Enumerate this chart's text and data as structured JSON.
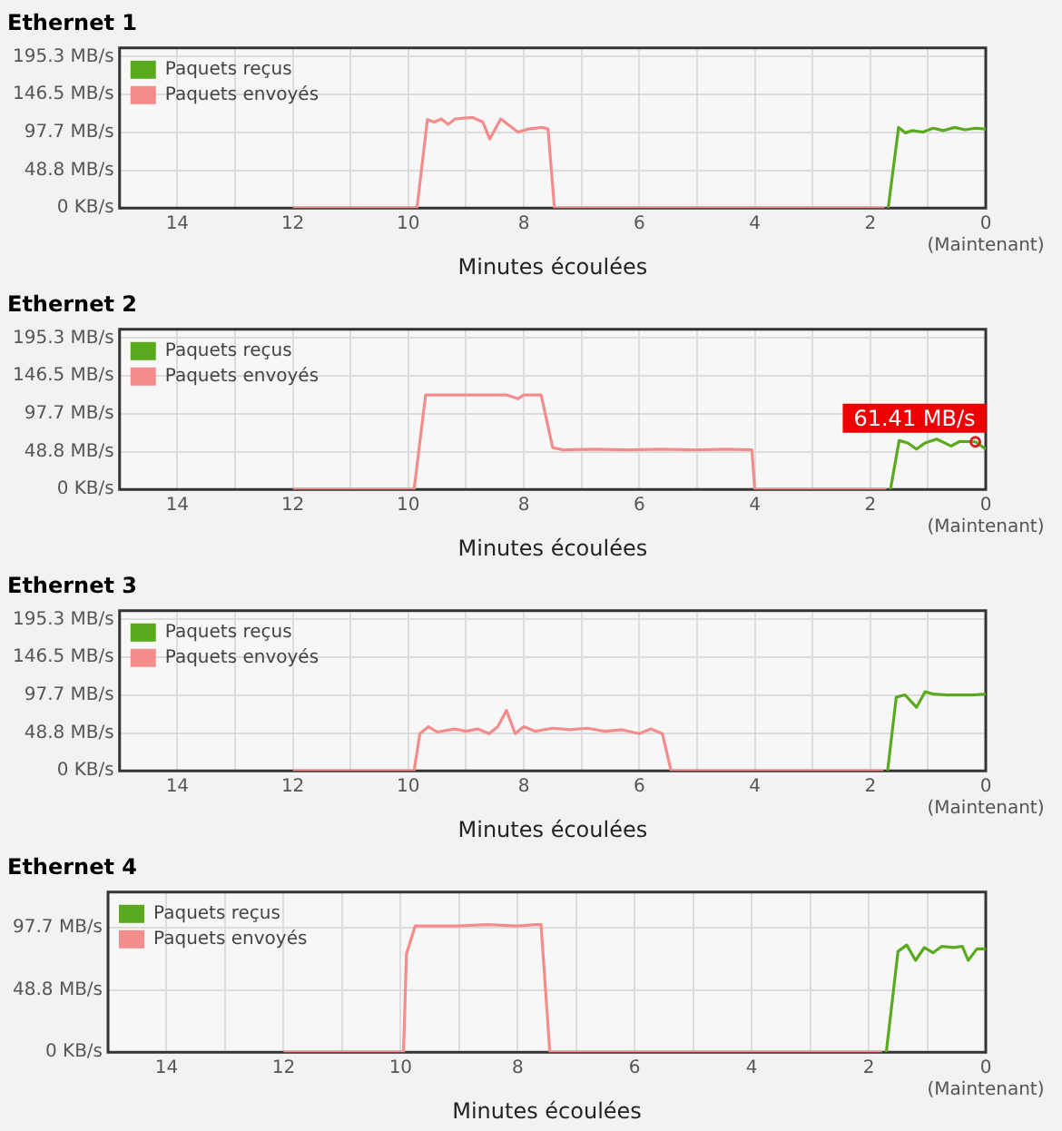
{
  "chart_data": [
    {
      "type": "line",
      "title": "Ethernet 1",
      "xlabel": "Minutes écoulées",
      "xlim": [
        15,
        0
      ],
      "xticks": [
        {
          "value": 14,
          "label": "14"
        },
        {
          "value": 13,
          "label": null
        },
        {
          "value": 12,
          "label": "12"
        },
        {
          "value": 11,
          "label": null
        },
        {
          "value": 10,
          "label": "10"
        },
        {
          "value": 9,
          "label": null
        },
        {
          "value": 8,
          "label": "8"
        },
        {
          "value": 7,
          "label": null
        },
        {
          "value": 6,
          "label": "6"
        },
        {
          "value": 5,
          "label": null
        },
        {
          "value": 4,
          "label": "4"
        },
        {
          "value": 3,
          "label": null
        },
        {
          "value": 2,
          "label": "2"
        },
        {
          "value": 1,
          "label": null
        },
        {
          "value": 0,
          "label": "0\n(Maintenant)"
        }
      ],
      "ylim": [
        0,
        206.6
      ],
      "yticks": [
        {
          "value": 0,
          "label": "0 KB/s"
        },
        {
          "value": 48.8,
          "label": "48.8 MB/s"
        },
        {
          "value": 97.7,
          "label": "97.7 MB/s"
        },
        {
          "value": 146.5,
          "label": "146.5 MB/s"
        },
        {
          "value": 195.3,
          "label": "195.3 MB/s"
        }
      ],
      "grid": true,
      "legend": "top left",
      "marker": "none",
      "line_style": "solid",
      "series": [
        {
          "name": "Paquets reçus",
          "color": "#5aaa1e",
          "x": [
            1.69,
            1.51,
            1.39,
            1.27,
            1.09,
            0.91,
            0.73,
            0.54,
            0.36,
            0.18,
            0
          ],
          "values": [
            0,
            104,
            97,
            100,
            98,
            103,
            100,
            104,
            101,
            103,
            102
          ]
        },
        {
          "name": "Paquets envoyés",
          "color": "#f58c8c",
          "x": [
            12,
            9.85,
            9.67,
            9.55,
            9.43,
            9.31,
            9.19,
            8.89,
            8.71,
            8.59,
            8.4,
            8.1,
            7.92,
            7.68,
            7.58,
            7.47,
            1.75
          ],
          "values": [
            0,
            0,
            114,
            111,
            115,
            108,
            115,
            117,
            111,
            89,
            115,
            98,
            102,
            104,
            102,
            0,
            0
          ]
        }
      ]
    },
    {
      "type": "line",
      "title": "Ethernet 2",
      "xlabel": "Minutes écoulées",
      "xlim": [
        15,
        0
      ],
      "xticks": [
        {
          "value": 14,
          "label": "14"
        },
        {
          "value": 13,
          "label": null
        },
        {
          "value": 12,
          "label": "12"
        },
        {
          "value": 11,
          "label": null
        },
        {
          "value": 10,
          "label": "10"
        },
        {
          "value": 9,
          "label": null
        },
        {
          "value": 8,
          "label": "8"
        },
        {
          "value": 7,
          "label": null
        },
        {
          "value": 6,
          "label": "6"
        },
        {
          "value": 5,
          "label": null
        },
        {
          "value": 4,
          "label": "4"
        },
        {
          "value": 3,
          "label": null
        },
        {
          "value": 2,
          "label": "2"
        },
        {
          "value": 1,
          "label": null
        },
        {
          "value": 0,
          "label": "0\n(Maintenant)"
        }
      ],
      "ylim": [
        0,
        206.6
      ],
      "yticks": [
        {
          "value": 0,
          "label": "0 KB/s"
        },
        {
          "value": 48.8,
          "label": "48.8 MB/s"
        },
        {
          "value": 97.7,
          "label": "97.7 MB/s"
        },
        {
          "value": 146.5,
          "label": "146.5 MB/s"
        },
        {
          "value": 195.3,
          "label": "195.3 MB/s"
        }
      ],
      "grid": true,
      "legend": "top left",
      "marker": "none",
      "line_style": "solid",
      "annotations": [
        {
          "text": "61.41 MB/s",
          "x": 0.18,
          "y": 61.41
        }
      ],
      "series": [
        {
          "name": "Paquets reçus",
          "color": "#5aaa1e",
          "x": [
            1.65,
            1.5,
            1.35,
            1.2,
            1.05,
            0.85,
            0.6,
            0.45,
            0.18,
            0
          ],
          "values": [
            0,
            63,
            60,
            52,
            60,
            65,
            56,
            62,
            61.41,
            52
          ]
        },
        {
          "name": "Paquets envoyés",
          "color": "#f58c8c",
          "x": [
            12,
            9.9,
            9.7,
            8.3,
            8.1,
            8.0,
            7.7,
            7.5,
            7.32,
            6.8,
            6.2,
            5.6,
            5.0,
            4.5,
            4.05,
            4.0,
            1.72
          ],
          "values": [
            0,
            0,
            122,
            122,
            117,
            122,
            122,
            54,
            51,
            52,
            51,
            52,
            51,
            52,
            51,
            0,
            0
          ]
        }
      ]
    },
    {
      "type": "line",
      "title": "Ethernet 3",
      "xlabel": "Minutes écoulées",
      "xlim": [
        15,
        0
      ],
      "xticks": [
        {
          "value": 14,
          "label": "14"
        },
        {
          "value": 13,
          "label": null
        },
        {
          "value": 12,
          "label": "12"
        },
        {
          "value": 11,
          "label": null
        },
        {
          "value": 10,
          "label": "10"
        },
        {
          "value": 9,
          "label": null
        },
        {
          "value": 8,
          "label": "8"
        },
        {
          "value": 7,
          "label": null
        },
        {
          "value": 6,
          "label": "6"
        },
        {
          "value": 5,
          "label": null
        },
        {
          "value": 4,
          "label": "4"
        },
        {
          "value": 3,
          "label": null
        },
        {
          "value": 2,
          "label": "2"
        },
        {
          "value": 1,
          "label": null
        },
        {
          "value": 0,
          "label": "0\n(Maintenant)"
        }
      ],
      "ylim": [
        0,
        206.6
      ],
      "yticks": [
        {
          "value": 0,
          "label": "0 KB/s"
        },
        {
          "value": 48.8,
          "label": "48.8 MB/s"
        },
        {
          "value": 97.7,
          "label": "97.7 MB/s"
        },
        {
          "value": 146.5,
          "label": "146.5 MB/s"
        },
        {
          "value": 195.3,
          "label": "195.3 MB/s"
        }
      ],
      "grid": true,
      "legend": "top left",
      "marker": "none",
      "line_style": "solid",
      "series": [
        {
          "name": "Paquets reçus",
          "color": "#5aaa1e",
          "x": [
            1.7,
            1.55,
            1.4,
            1.2,
            1.05,
            0.9,
            0.7,
            0.4,
            0.2,
            0
          ],
          "values": [
            0,
            95,
            98,
            82,
            102,
            99,
            98,
            98,
            98,
            99
          ]
        },
        {
          "name": "Paquets envoyés",
          "color": "#f58c8c",
          "x": [
            12,
            9.9,
            9.8,
            9.65,
            9.5,
            9.2,
            9,
            8.8,
            8.6,
            8.45,
            8.3,
            8.15,
            8,
            7.8,
            7.5,
            7.2,
            6.9,
            6.6,
            6.3,
            6,
            5.8,
            5.6,
            5.45,
            1.77
          ],
          "values": [
            0,
            0,
            48,
            57,
            50,
            54,
            51,
            54,
            48,
            57,
            78,
            48,
            57,
            51,
            55,
            53,
            55,
            51,
            53,
            48,
            54,
            48,
            0,
            0
          ]
        }
      ]
    },
    {
      "type": "line",
      "title": "Ethernet 4",
      "xlabel": "Minutes écoulées",
      "xlim": [
        15,
        0
      ],
      "xticks": [
        {
          "value": 14,
          "label": "14"
        },
        {
          "value": 13,
          "label": null
        },
        {
          "value": 12,
          "label": "12"
        },
        {
          "value": 11,
          "label": null
        },
        {
          "value": 10,
          "label": "10"
        },
        {
          "value": 9,
          "label": null
        },
        {
          "value": 8,
          "label": "8"
        },
        {
          "value": 7,
          "label": null
        },
        {
          "value": 6,
          "label": "6"
        },
        {
          "value": 5,
          "label": null
        },
        {
          "value": 4,
          "label": "4"
        },
        {
          "value": 3,
          "label": null
        },
        {
          "value": 2,
          "label": "2"
        },
        {
          "value": 1,
          "label": null
        },
        {
          "value": 0,
          "label": "0\n(Maintenant)"
        }
      ],
      "ylim": [
        0,
        125.5
      ],
      "yticks": [
        {
          "value": 0,
          "label": "0 KB/s"
        },
        {
          "value": 48.8,
          "label": "48.8 MB/s"
        },
        {
          "value": 97.7,
          "label": "97.7 MB/s"
        }
      ],
      "grid": true,
      "legend": "top left",
      "marker": "none",
      "line_style": "solid",
      "series": [
        {
          "name": "Paquets reçus",
          "color": "#5aaa1e",
          "x": [
            1.7,
            1.5,
            1.35,
            1.2,
            1.05,
            0.9,
            0.75,
            0.55,
            0.4,
            0.3,
            0.15,
            0
          ],
          "values": [
            0,
            79,
            84,
            72,
            82,
            78,
            83,
            82,
            83,
            72,
            81,
            81
          ]
        },
        {
          "name": "Paquets envoyés",
          "color": "#f58c8c",
          "x": [
            12,
            9.95,
            9.9,
            9.75,
            9,
            8.5,
            8,
            7.7,
            7.6,
            7.45,
            1.77
          ],
          "values": [
            0,
            0,
            77,
            99,
            99,
            100,
            99,
            100,
            100,
            0,
            0
          ]
        }
      ]
    }
  ]
}
